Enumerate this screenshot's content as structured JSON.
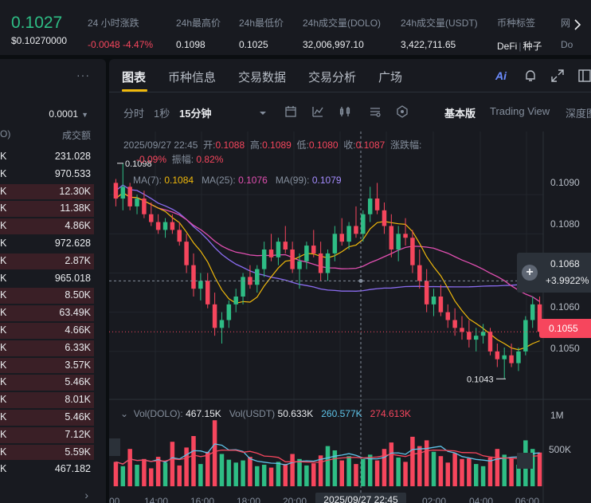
{
  "ticker": {
    "price": "0.1027",
    "price_usd": "$0.10270000",
    "stats": [
      {
        "label": "24 小时涨跌",
        "value": "-0.0048 -4.47%",
        "red": true
      },
      {
        "label": "24h最高价",
        "value": "0.1098"
      },
      {
        "label": "24h最低价",
        "value": "0.1025"
      },
      {
        "label": "24h成交量(DOLO)",
        "value": "32,006,997.10"
      },
      {
        "label": "24h成交量(USDT)",
        "value": "3,422,711.65"
      }
    ],
    "tags_label": "币种标签",
    "tag_1": "DeFi",
    "tag_2": "种子",
    "cut_label": "网",
    "cut_value": "Do"
  },
  "book": {
    "step": "0.0001",
    "col_left": "O)",
    "col_right": "成交额",
    "rows": [
      {
        "l": "K",
        "r": "231.028",
        "bg": false
      },
      {
        "l": "K",
        "r": "970.533",
        "bg": false
      },
      {
        "l": "K",
        "r": "12.30K",
        "bg": true
      },
      {
        "l": "K",
        "r": "11.38K",
        "bg": true
      },
      {
        "l": "K",
        "r": "4.86K",
        "bg": true
      },
      {
        "l": "K",
        "r": "972.628",
        "bg": false
      },
      {
        "l": "K",
        "r": "2.87K",
        "bg": true
      },
      {
        "l": "K",
        "r": "965.018",
        "bg": false
      },
      {
        "l": "K",
        "r": "8.50K",
        "bg": true
      },
      {
        "l": "K",
        "r": "63.49K",
        "bg": true
      },
      {
        "l": "K",
        "r": "4.66K",
        "bg": true
      },
      {
        "l": "K",
        "r": "6.33K",
        "bg": true
      },
      {
        "l": "K",
        "r": "3.57K",
        "bg": true
      },
      {
        "l": "K",
        "r": "5.46K",
        "bg": true
      },
      {
        "l": "K",
        "r": "8.01K",
        "bg": true
      },
      {
        "l": "K",
        "r": "5.46K",
        "bg": true
      },
      {
        "l": "K",
        "r": "7.12K",
        "bg": true
      },
      {
        "l": "K",
        "r": "5.59K",
        "bg": true
      },
      {
        "l": "K",
        "r": "467.182",
        "bg": false
      }
    ]
  },
  "tabs": [
    "图表",
    "币种信息",
    "交易数据",
    "交易分析",
    "广场"
  ],
  "ai_label": "Ai",
  "toolbar": {
    "intervals": [
      "分时",
      "1秒",
      "15分钟"
    ],
    "views": [
      "基本版",
      "Trading View",
      "深度图"
    ]
  },
  "legend": {
    "date": "2025/09/27 22:45",
    "open_k": "开:",
    "open_v": "0.1088",
    "high_k": "高:",
    "high_v": "0.1089",
    "low_k": "低:",
    "low_v": "0.1080",
    "close_k": "收:",
    "close_v": "0.1087",
    "chg_k": "涨跌幅:",
    "chg_v": "-0.09%",
    "amp_k": "振幅:",
    "amp_v": "0.82%",
    "ma7_k": "MA(7):",
    "ma7_v": "0.1084",
    "ma25_k": "MA(25):",
    "ma25_v": "0.1076",
    "ma99_k": "MA(99):",
    "ma99_v": "0.1079",
    "high_mark": "0.1098",
    "low_mark": "0.1043"
  },
  "price_axis": [
    "0.1090",
    "0.1080",
    "0.1060",
    "0.1050"
  ],
  "crosshair": {
    "price": "0.1068",
    "change": "+3.9922%"
  },
  "last_price": "0.1055",
  "volume": {
    "k1": "Vol(DOLO):",
    "v1": "467.15K",
    "k2": "Vol(USDT)",
    "v2": "50.633K",
    "v3": "260.577K",
    "v4": "274.613K",
    "axis_1m": "1M",
    "axis_500k": "500K"
  },
  "time_axis": [
    "00",
    "14:00",
    "16:00",
    "18:00",
    "20:00",
    "02:00",
    "04:00",
    "06:00"
  ],
  "time_cursor": "2025/09/27 22:45",
  "colors": {
    "up": "#2ebd85",
    "down": "#f6465d",
    "ma7": "#f0b90b",
    "ma25": "#e04fb0",
    "ma99": "#8a6cf0",
    "accent": "#f0b90b"
  },
  "chart_data": {
    "type": "candlestick",
    "interval": "15分钟",
    "ohlc": [
      [
        0.1093,
        0.1094,
        0.1087,
        0.1089
      ],
      [
        0.1089,
        0.1098,
        0.1086,
        0.1092
      ],
      [
        0.1092,
        0.1093,
        0.1086,
        0.1087
      ],
      [
        0.1087,
        0.109,
        0.1085,
        0.1089
      ],
      [
        0.1089,
        0.1091,
        0.1084,
        0.1085
      ],
      [
        0.1085,
        0.1088,
        0.1082,
        0.1083
      ],
      [
        0.1083,
        0.1085,
        0.108,
        0.1081
      ],
      [
        0.1081,
        0.1084,
        0.1079,
        0.1083
      ],
      [
        0.1083,
        0.1085,
        0.108,
        0.1081
      ],
      [
        0.1081,
        0.1083,
        0.1077,
        0.1078
      ],
      [
        0.1078,
        0.108,
        0.107,
        0.1072
      ],
      [
        0.1072,
        0.1075,
        0.1064,
        0.1066
      ],
      [
        0.1066,
        0.107,
        0.1063,
        0.1068
      ],
      [
        0.1068,
        0.107,
        0.1061,
        0.1062
      ],
      [
        0.1062,
        0.1065,
        0.1054,
        0.1056
      ],
      [
        0.1056,
        0.106,
        0.1052,
        0.1058
      ],
      [
        0.1058,
        0.1063,
        0.1056,
        0.1062
      ],
      [
        0.1062,
        0.1066,
        0.106,
        0.1064
      ],
      [
        0.1064,
        0.107,
        0.1062,
        0.1069
      ],
      [
        0.1069,
        0.1072,
        0.1066,
        0.1067
      ],
      [
        0.1067,
        0.1072,
        0.1065,
        0.1071
      ],
      [
        0.1071,
        0.1078,
        0.1069,
        0.1076
      ],
      [
        0.1076,
        0.108,
        0.1073,
        0.1074
      ],
      [
        0.1074,
        0.1079,
        0.1072,
        0.1078
      ],
      [
        0.1078,
        0.1082,
        0.1075,
        0.1076
      ],
      [
        0.1076,
        0.1078,
        0.107,
        0.1071
      ],
      [
        0.1071,
        0.1075,
        0.1066,
        0.1073
      ],
      [
        0.1073,
        0.1078,
        0.1071,
        0.1077
      ],
      [
        0.1077,
        0.1081,
        0.1074,
        0.1075
      ],
      [
        0.1075,
        0.1078,
        0.1068,
        0.107
      ],
      [
        0.107,
        0.1076,
        0.1068,
        0.1075
      ],
      [
        0.1075,
        0.1082,
        0.1073,
        0.108
      ],
      [
        0.108,
        0.1084,
        0.1077,
        0.1078
      ],
      [
        0.1078,
        0.1083,
        0.1076,
        0.1082
      ],
      [
        0.1082,
        0.1087,
        0.1079,
        0.108
      ],
      [
        0.108,
        0.1086,
        0.1078,
        0.1085
      ],
      [
        0.1085,
        0.1092,
        0.1083,
        0.1089
      ],
      [
        0.1089,
        0.1093,
        0.1085,
        0.1086
      ],
      [
        0.1086,
        0.1088,
        0.108,
        0.1082
      ],
      [
        0.1082,
        0.1085,
        0.1074,
        0.1076
      ],
      [
        0.1076,
        0.1082,
        0.1073,
        0.108
      ],
      [
        0.108,
        0.1084,
        0.1077,
        0.1079
      ],
      [
        0.1079,
        0.1081,
        0.107,
        0.1072
      ],
      [
        0.1072,
        0.1076,
        0.1066,
        0.1068
      ],
      [
        0.1068,
        0.1071,
        0.106,
        0.1062
      ],
      [
        0.1062,
        0.1066,
        0.1059,
        0.1064
      ],
      [
        0.1064,
        0.1067,
        0.1059,
        0.106
      ],
      [
        0.106,
        0.1062,
        0.1056,
        0.1058
      ],
      [
        0.1058,
        0.1061,
        0.1054,
        0.1056
      ],
      [
        0.1056,
        0.1059,
        0.1053,
        0.1055
      ],
      [
        0.1055,
        0.1058,
        0.1051,
        0.1053
      ],
      [
        0.1053,
        0.1056,
        0.105,
        0.1054
      ],
      [
        0.1054,
        0.1057,
        0.1052,
        0.1055
      ],
      [
        0.1055,
        0.1056,
        0.1049,
        0.105
      ],
      [
        0.105,
        0.1052,
        0.1046,
        0.1048
      ],
      [
        0.1048,
        0.1051,
        0.1043,
        0.1049
      ],
      [
        0.1049,
        0.1052,
        0.1046,
        0.1047
      ],
      [
        0.1047,
        0.1051,
        0.1045,
        0.105
      ],
      [
        0.105,
        0.1059,
        0.1049,
        0.1058
      ],
      [
        0.1058,
        0.1064,
        0.1056,
        0.1062
      ],
      [
        0.1062,
        0.1064,
        0.1054,
        0.1055
      ]
    ],
    "volume": [
      340,
      280,
      520,
      300,
      380,
      250,
      410,
      330,
      620,
      290,
      540,
      700,
      310,
      480,
      920,
      450,
      370,
      330,
      360,
      410,
      280,
      300,
      260,
      340,
      310,
      450,
      380,
      290,
      320,
      430,
      560,
      500,
      360,
      420,
      310,
      380,
      440,
      360,
      520,
      610,
      400,
      340,
      690,
      560,
      640,
      480,
      420,
      330,
      460,
      380,
      390,
      310,
      280,
      400,
      520,
      440,
      390,
      300,
      640,
      520,
      470
    ],
    "ylim": [
      0.104,
      0.11
    ]
  }
}
